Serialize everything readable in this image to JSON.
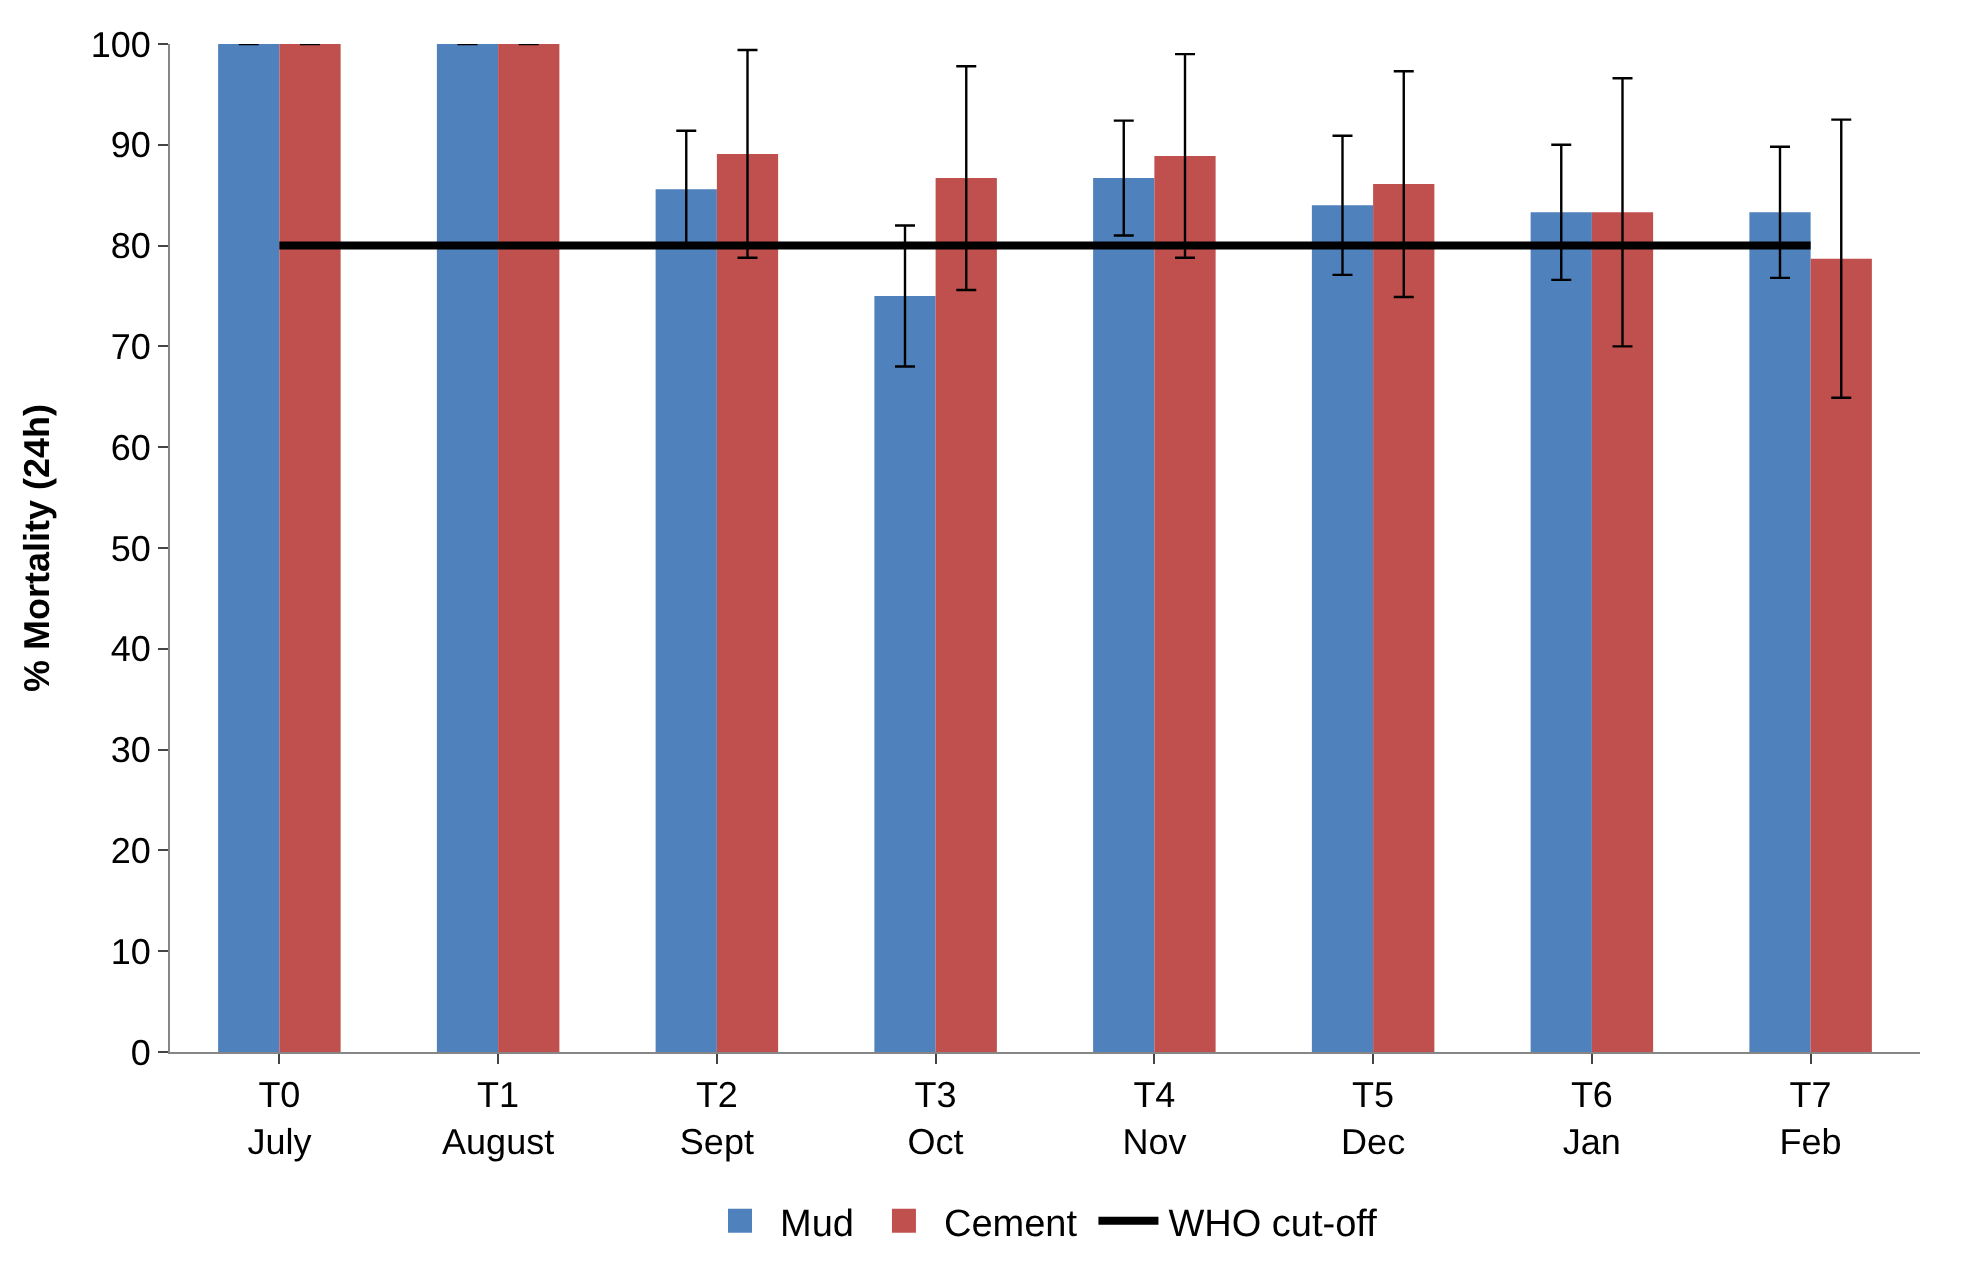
{
  "chart_data": {
    "type": "bar",
    "ylabel": "% Mortality (24h)",
    "categories": [
      "T0\nJuly",
      "T1\nAugust",
      "T2\nSept",
      "T3\nOct",
      "T4\nNov",
      "T5\nDec",
      "T6\nJan",
      "T7\nFeb"
    ],
    "series": [
      {
        "name": "Mud",
        "color": "#4f81bd",
        "values": [
          100,
          100,
          85.6,
          75,
          86.7,
          84,
          83.3,
          83.3
        ],
        "errors": [
          null,
          null,
          5.8,
          7,
          5.7,
          6.9,
          6.7,
          6.5
        ]
      },
      {
        "name": "Cement",
        "color": "#c0504d",
        "values": [
          100,
          100,
          89.1,
          86.7,
          88.9,
          86.1,
          83.3,
          78.7
        ],
        "errors": [
          null,
          null,
          10.3,
          11.1,
          10.1,
          11.2,
          13.3,
          13.8
        ]
      }
    ],
    "ref_lines": [
      {
        "axis": "y",
        "value": 80,
        "label": "WHO cut-off",
        "color": "#000000"
      }
    ],
    "ylim": [
      0,
      100
    ],
    "yticks": [
      0,
      10,
      20,
      30,
      40,
      50,
      60,
      70,
      80,
      90,
      100
    ],
    "legend": "bottom"
  }
}
